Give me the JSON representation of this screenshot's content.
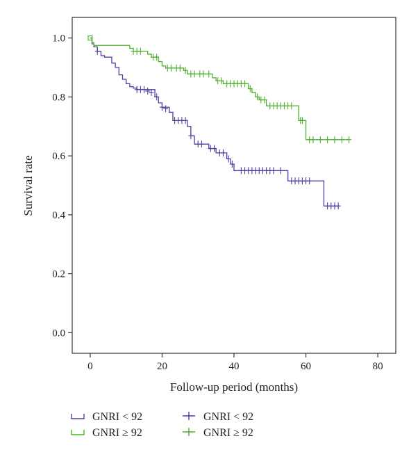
{
  "chart_data": {
    "type": "line",
    "subtype": "kaplan-meier step curves with censor marks",
    "title": "",
    "xlabel": "Follow-up period (months)",
    "ylabel": "Survival rate",
    "xlim": [
      -5,
      85
    ],
    "ylim": [
      -0.07,
      1.07
    ],
    "x_ticks": [
      0,
      20,
      40,
      60,
      80
    ],
    "y_ticks": [
      0.0,
      0.2,
      0.4,
      0.6,
      0.8,
      1.0
    ],
    "x_tick_labels": [
      "0",
      "20",
      "40",
      "60",
      "80"
    ],
    "y_tick_labels": [
      "0.0",
      "0.2",
      "0.4",
      "0.6",
      "0.8",
      "1.0"
    ],
    "grid": false,
    "legend": {
      "position": "bottom",
      "entries": [
        {
          "label": "GNRI < 92",
          "series": 0,
          "marker": "step"
        },
        {
          "label": "GNRI ≥ 92",
          "series": 1,
          "marker": "step"
        },
        {
          "label": "GNRI < 92",
          "series": 0,
          "marker": "censor"
        },
        {
          "label": "GNRI ≥ 92",
          "series": 1,
          "marker": "censor"
        }
      ]
    },
    "series": [
      {
        "name": "GNRI < 92",
        "color": "#4a3fa0",
        "steps": [
          [
            0,
            1.0
          ],
          [
            0.5,
            0.98
          ],
          [
            1,
            0.97
          ],
          [
            2,
            0.955
          ],
          [
            3,
            0.94
          ],
          [
            4,
            0.935
          ],
          [
            6,
            0.915
          ],
          [
            7,
            0.9
          ],
          [
            8,
            0.875
          ],
          [
            9,
            0.86
          ],
          [
            10,
            0.845
          ],
          [
            11,
            0.835
          ],
          [
            12,
            0.83
          ],
          [
            13,
            0.825
          ],
          [
            18,
            0.8
          ],
          [
            19,
            0.78
          ],
          [
            20,
            0.765
          ],
          [
            22,
            0.748
          ],
          [
            23,
            0.72
          ],
          [
            27,
            0.7
          ],
          [
            28,
            0.668
          ],
          [
            29,
            0.64
          ],
          [
            33,
            0.625
          ],
          [
            35,
            0.61
          ],
          [
            38,
            0.59
          ],
          [
            39,
            0.572
          ],
          [
            40,
            0.55
          ],
          [
            55,
            0.515
          ],
          [
            65,
            0.43
          ]
        ],
        "end_x": 69,
        "censored": [
          [
            2,
            0.955
          ],
          [
            13,
            0.825
          ],
          [
            14,
            0.825
          ],
          [
            15,
            0.825
          ],
          [
            16,
            0.82
          ],
          [
            17,
            0.815
          ],
          [
            18.5,
            0.8
          ],
          [
            20,
            0.765
          ],
          [
            21,
            0.76
          ],
          [
            23.5,
            0.72
          ],
          [
            24.5,
            0.72
          ],
          [
            25.5,
            0.72
          ],
          [
            26.5,
            0.72
          ],
          [
            28,
            0.668
          ],
          [
            30,
            0.64
          ],
          [
            31,
            0.64
          ],
          [
            33.5,
            0.625
          ],
          [
            34.5,
            0.625
          ],
          [
            36,
            0.61
          ],
          [
            37,
            0.61
          ],
          [
            38.5,
            0.59
          ],
          [
            39.5,
            0.572
          ],
          [
            42,
            0.55
          ],
          [
            43,
            0.55
          ],
          [
            44,
            0.55
          ],
          [
            45,
            0.55
          ],
          [
            46,
            0.55
          ],
          [
            47,
            0.55
          ],
          [
            48,
            0.55
          ],
          [
            49,
            0.55
          ],
          [
            50,
            0.55
          ],
          [
            51,
            0.55
          ],
          [
            53,
            0.55
          ],
          [
            56,
            0.515
          ],
          [
            57,
            0.515
          ],
          [
            58,
            0.515
          ],
          [
            59,
            0.515
          ],
          [
            60,
            0.515
          ],
          [
            61,
            0.515
          ],
          [
            66,
            0.43
          ],
          [
            67,
            0.43
          ],
          [
            68,
            0.43
          ],
          [
            69,
            0.43
          ]
        ]
      },
      {
        "name": "GNRI ≥ 92",
        "color": "#4caf2a",
        "steps": [
          [
            0,
            1.0
          ],
          [
            0.5,
            0.985
          ],
          [
            1,
            0.975
          ],
          [
            11,
            0.965
          ],
          [
            12,
            0.955
          ],
          [
            16,
            0.945
          ],
          [
            17,
            0.935
          ],
          [
            19,
            0.92
          ],
          [
            20,
            0.905
          ],
          [
            21,
            0.898
          ],
          [
            26,
            0.89
          ],
          [
            27,
            0.878
          ],
          [
            34,
            0.865
          ],
          [
            35,
            0.855
          ],
          [
            37,
            0.845
          ],
          [
            44,
            0.828
          ],
          [
            45,
            0.815
          ],
          [
            46,
            0.8
          ],
          [
            47,
            0.79
          ],
          [
            49,
            0.77
          ],
          [
            58,
            0.72
          ],
          [
            60,
            0.655
          ]
        ],
        "end_x": 72,
        "censored": [
          [
            12,
            0.955
          ],
          [
            13,
            0.955
          ],
          [
            14,
            0.955
          ],
          [
            17.5,
            0.935
          ],
          [
            18.5,
            0.935
          ],
          [
            21.5,
            0.898
          ],
          [
            22.5,
            0.898
          ],
          [
            24,
            0.898
          ],
          [
            25,
            0.898
          ],
          [
            26.5,
            0.89
          ],
          [
            28,
            0.878
          ],
          [
            29,
            0.878
          ],
          [
            30.5,
            0.878
          ],
          [
            31.5,
            0.878
          ],
          [
            33,
            0.878
          ],
          [
            35.5,
            0.855
          ],
          [
            36.5,
            0.855
          ],
          [
            38,
            0.845
          ],
          [
            39,
            0.845
          ],
          [
            40,
            0.845
          ],
          [
            41,
            0.845
          ],
          [
            42,
            0.845
          ],
          [
            43,
            0.845
          ],
          [
            44.5,
            0.828
          ],
          [
            46.5,
            0.8
          ],
          [
            47.5,
            0.79
          ],
          [
            48.5,
            0.79
          ],
          [
            50,
            0.77
          ],
          [
            51,
            0.77
          ],
          [
            52,
            0.77
          ],
          [
            53,
            0.77
          ],
          [
            54,
            0.77
          ],
          [
            55,
            0.77
          ],
          [
            56,
            0.77
          ],
          [
            58.5,
            0.72
          ],
          [
            59,
            0.72
          ],
          [
            61,
            0.655
          ],
          [
            62,
            0.655
          ],
          [
            64,
            0.655
          ],
          [
            66,
            0.655
          ],
          [
            68,
            0.655
          ],
          [
            70,
            0.655
          ],
          [
            72,
            0.655
          ]
        ]
      }
    ]
  }
}
